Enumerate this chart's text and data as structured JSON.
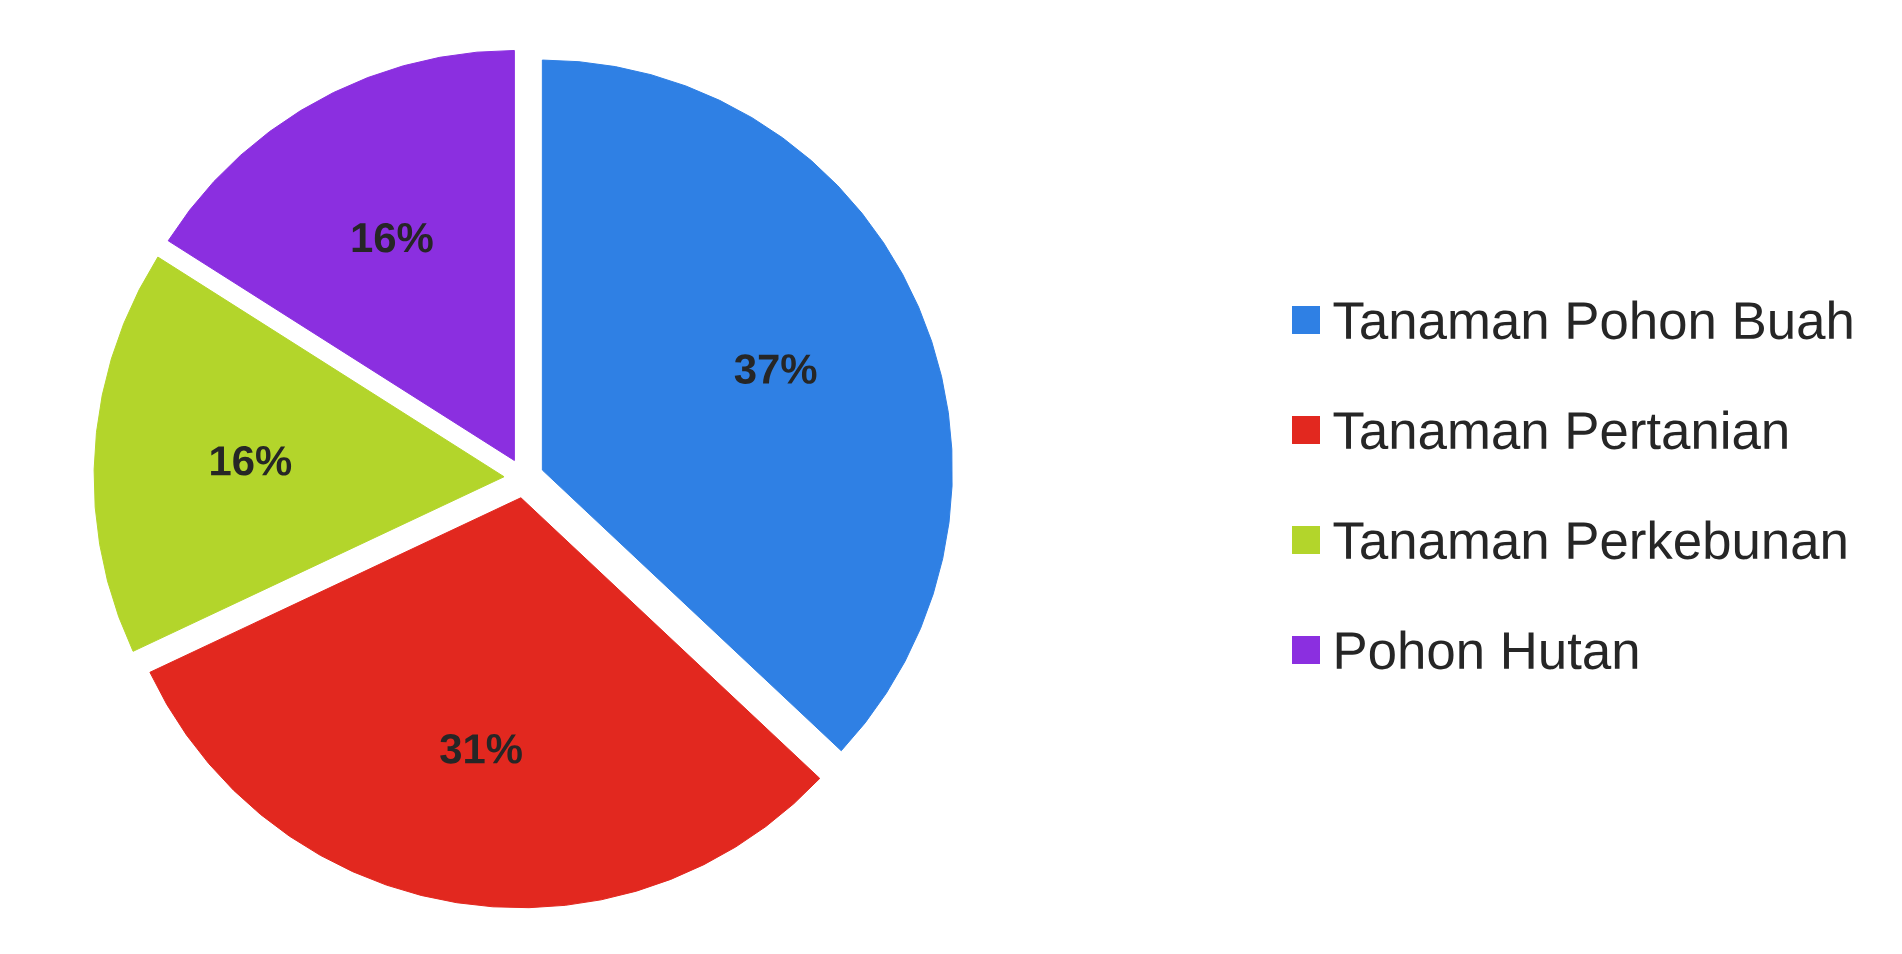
{
  "chart_data": {
    "type": "pie",
    "categories": [
      "Tanaman Pohon Buah",
      "Tanaman Pertanian",
      "Tanaman Perkebunan",
      "Pohon Hutan"
    ],
    "values": [
      37,
      31,
      16,
      16
    ],
    "colors": [
      "#2f80e4",
      "#e2281f",
      "#b3d52b",
      "#8b2fe0"
    ],
    "value_labels": [
      "37%",
      "31%",
      "16%",
      "16%"
    ],
    "legend": "right"
  }
}
